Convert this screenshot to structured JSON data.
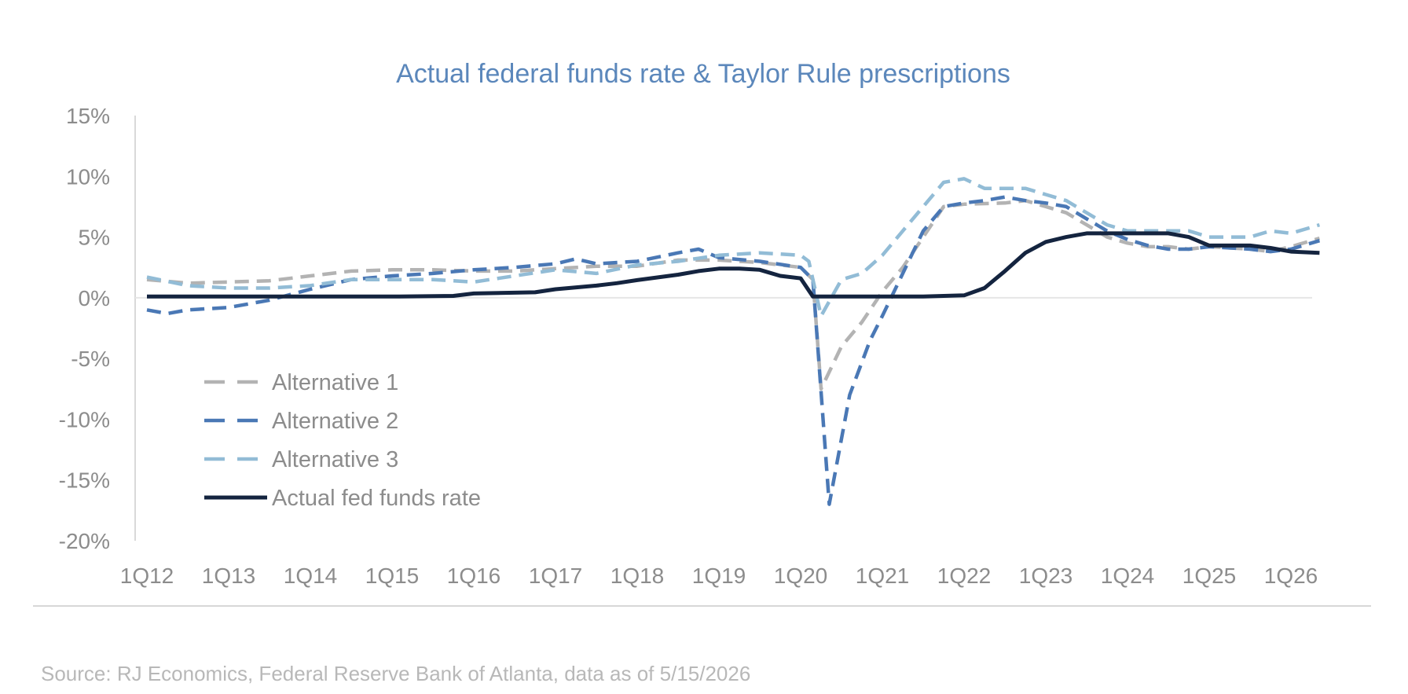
{
  "chart_data": {
    "type": "line",
    "title": "Actual federal funds rate & Taylor Rule prescriptions",
    "source": "Source: RJ Economics, Federal Reserve Bank of Atlanta, data as of 5/15/2026",
    "x_tick_labels": [
      "1Q12",
      "1Q13",
      "1Q14",
      "1Q15",
      "1Q16",
      "1Q17",
      "1Q18",
      "1Q19",
      "1Q20",
      "1Q21",
      "1Q22",
      "1Q23",
      "1Q24",
      "1Q25",
      "1Q26"
    ],
    "y_tick_labels": [
      "15%",
      "10%",
      "5%",
      "0%",
      "-5%",
      "-10%",
      "-15%",
      "-20%"
    ],
    "ylim": [
      -20,
      15
    ],
    "y_ticks": [
      15,
      10,
      5,
      0,
      -5,
      -10,
      -15,
      -20
    ],
    "x_start_year": 2012,
    "x_end": 2026.35,
    "legend_position": "bottom-left",
    "grid": false,
    "series": [
      {
        "name": "Alternative 1",
        "color": "#b3b3b3",
        "dash": "dashed",
        "points": [
          [
            2012.0,
            1.5
          ],
          [
            2012.5,
            1.2
          ],
          [
            2013.0,
            1.3
          ],
          [
            2013.5,
            1.4
          ],
          [
            2014.0,
            1.8
          ],
          [
            2014.5,
            2.2
          ],
          [
            2015.0,
            2.3
          ],
          [
            2015.5,
            2.3
          ],
          [
            2016.0,
            2.2
          ],
          [
            2016.5,
            2.2
          ],
          [
            2017.0,
            2.4
          ],
          [
            2017.5,
            2.6
          ],
          [
            2018.0,
            2.6
          ],
          [
            2018.5,
            3.1
          ],
          [
            2019.0,
            3.1
          ],
          [
            2019.5,
            2.9
          ],
          [
            2020.0,
            2.5
          ],
          [
            2020.15,
            1.5
          ],
          [
            2020.25,
            -7.5
          ],
          [
            2020.5,
            -4.0
          ],
          [
            2020.75,
            -2.0
          ],
          [
            2021.0,
            0.5
          ],
          [
            2021.25,
            2.5
          ],
          [
            2021.5,
            5.0
          ],
          [
            2021.75,
            7.5
          ],
          [
            2022.0,
            7.7
          ],
          [
            2022.5,
            7.8
          ],
          [
            2022.75,
            8.0
          ],
          [
            2023.0,
            7.5
          ],
          [
            2023.25,
            7.0
          ],
          [
            2023.5,
            6.0
          ],
          [
            2023.75,
            5.0
          ],
          [
            2024.0,
            4.5
          ],
          [
            2024.25,
            4.2
          ],
          [
            2024.5,
            4.2
          ],
          [
            2024.75,
            4.0
          ],
          [
            2025.0,
            4.2
          ],
          [
            2025.5,
            4.0
          ],
          [
            2025.75,
            3.8
          ],
          [
            2026.0,
            4.2
          ],
          [
            2026.35,
            4.9
          ]
        ]
      },
      {
        "name": "Alternative 2",
        "color": "#4a78b5",
        "dash": "dashed",
        "points": [
          [
            2012.0,
            -1.0
          ],
          [
            2012.25,
            -1.3
          ],
          [
            2012.5,
            -1.0
          ],
          [
            2013.0,
            -0.8
          ],
          [
            2013.5,
            -0.2
          ],
          [
            2014.0,
            0.7
          ],
          [
            2014.5,
            1.5
          ],
          [
            2015.0,
            1.8
          ],
          [
            2015.5,
            2.0
          ],
          [
            2016.0,
            2.3
          ],
          [
            2016.5,
            2.5
          ],
          [
            2017.0,
            2.8
          ],
          [
            2017.25,
            3.2
          ],
          [
            2017.5,
            2.8
          ],
          [
            2018.0,
            3.0
          ],
          [
            2018.5,
            3.7
          ],
          [
            2018.75,
            4.0
          ],
          [
            2019.0,
            3.3
          ],
          [
            2019.5,
            3.0
          ],
          [
            2020.0,
            2.5
          ],
          [
            2020.15,
            1.5
          ],
          [
            2020.35,
            -17.0
          ],
          [
            2020.6,
            -8.0
          ],
          [
            2020.85,
            -3.5
          ],
          [
            2021.0,
            -1.5
          ],
          [
            2021.25,
            2.0
          ],
          [
            2021.5,
            5.5
          ],
          [
            2021.75,
            7.5
          ],
          [
            2022.0,
            7.8
          ],
          [
            2022.25,
            8.0
          ],
          [
            2022.5,
            8.3
          ],
          [
            2022.75,
            8.0
          ],
          [
            2023.0,
            7.8
          ],
          [
            2023.25,
            7.5
          ],
          [
            2023.5,
            6.5
          ],
          [
            2023.75,
            5.5
          ],
          [
            2024.0,
            4.8
          ],
          [
            2024.25,
            4.3
          ],
          [
            2024.5,
            4.0
          ],
          [
            2024.75,
            4.0
          ],
          [
            2025.0,
            4.2
          ],
          [
            2025.5,
            4.0
          ],
          [
            2025.75,
            3.8
          ],
          [
            2026.0,
            4.0
          ],
          [
            2026.35,
            4.7
          ]
        ]
      },
      {
        "name": "Alternative 3",
        "color": "#92bcd6",
        "dash": "dashed",
        "points": [
          [
            2012.0,
            1.7
          ],
          [
            2012.5,
            1.0
          ],
          [
            2013.0,
            0.8
          ],
          [
            2013.5,
            0.8
          ],
          [
            2014.0,
            1.0
          ],
          [
            2014.5,
            1.5
          ],
          [
            2015.0,
            1.5
          ],
          [
            2015.5,
            1.5
          ],
          [
            2016.0,
            1.3
          ],
          [
            2016.5,
            1.8
          ],
          [
            2017.0,
            2.3
          ],
          [
            2017.5,
            2.0
          ],
          [
            2018.0,
            2.7
          ],
          [
            2018.5,
            3.0
          ],
          [
            2019.0,
            3.5
          ],
          [
            2019.5,
            3.7
          ],
          [
            2020.0,
            3.5
          ],
          [
            2020.1,
            3.0
          ],
          [
            2020.25,
            -1.5
          ],
          [
            2020.5,
            1.5
          ],
          [
            2020.75,
            2.0
          ],
          [
            2021.0,
            3.5
          ],
          [
            2021.25,
            5.5
          ],
          [
            2021.5,
            7.5
          ],
          [
            2021.75,
            9.5
          ],
          [
            2022.0,
            9.8
          ],
          [
            2022.25,
            9.0
          ],
          [
            2022.5,
            9.0
          ],
          [
            2022.75,
            9.0
          ],
          [
            2023.0,
            8.5
          ],
          [
            2023.25,
            8.0
          ],
          [
            2023.5,
            7.0
          ],
          [
            2023.75,
            6.0
          ],
          [
            2024.0,
            5.5
          ],
          [
            2024.25,
            5.5
          ],
          [
            2024.5,
            5.5
          ],
          [
            2024.75,
            5.5
          ],
          [
            2025.0,
            5.0
          ],
          [
            2025.5,
            5.0
          ],
          [
            2025.75,
            5.5
          ],
          [
            2026.0,
            5.3
          ],
          [
            2026.35,
            6.0
          ]
        ]
      },
      {
        "name": "Actual fed funds rate",
        "color": "#14243f",
        "dash": "solid",
        "points": [
          [
            2012.0,
            0.1
          ],
          [
            2013.0,
            0.1
          ],
          [
            2014.0,
            0.1
          ],
          [
            2015.0,
            0.1
          ],
          [
            2015.75,
            0.15
          ],
          [
            2016.0,
            0.35
          ],
          [
            2016.75,
            0.45
          ],
          [
            2017.0,
            0.7
          ],
          [
            2017.5,
            1.0
          ],
          [
            2017.75,
            1.2
          ],
          [
            2018.0,
            1.45
          ],
          [
            2018.5,
            1.9
          ],
          [
            2018.75,
            2.2
          ],
          [
            2019.0,
            2.4
          ],
          [
            2019.25,
            2.4
          ],
          [
            2019.5,
            2.3
          ],
          [
            2019.75,
            1.8
          ],
          [
            2020.0,
            1.6
          ],
          [
            2020.15,
            0.1
          ],
          [
            2021.0,
            0.1
          ],
          [
            2021.5,
            0.1
          ],
          [
            2022.0,
            0.2
          ],
          [
            2022.25,
            0.8
          ],
          [
            2022.5,
            2.2
          ],
          [
            2022.75,
            3.7
          ],
          [
            2023.0,
            4.6
          ],
          [
            2023.25,
            5.0
          ],
          [
            2023.5,
            5.3
          ],
          [
            2023.75,
            5.3
          ],
          [
            2024.0,
            5.3
          ],
          [
            2024.5,
            5.3
          ],
          [
            2024.75,
            5.0
          ],
          [
            2025.0,
            4.3
          ],
          [
            2025.5,
            4.3
          ],
          [
            2025.75,
            4.1
          ],
          [
            2026.0,
            3.8
          ],
          [
            2026.35,
            3.7
          ]
        ]
      }
    ]
  }
}
